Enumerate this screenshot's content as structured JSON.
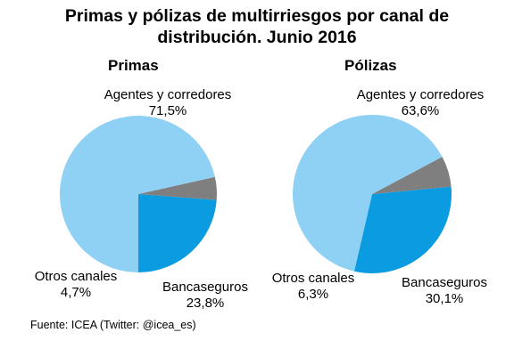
{
  "figure": {
    "title_line1": "Primas y pólizas de multirriesgos por canal de",
    "title_line2": "distribución. Junio 2016",
    "source": "Fuente: ICEA (Twitter: @icea_es)"
  },
  "colors": {
    "Agentes y corredores": "#8fd0f5",
    "Bancaseguros": "#0a9be0",
    "Otros canales": "#7f7f7f"
  },
  "chart_data": [
    {
      "type": "pie",
      "title": "Primas",
      "slices": [
        {
          "label": "Agentes y corredores",
          "value": 71.5,
          "value_label": "71,5%"
        },
        {
          "label": "Bancaseguros",
          "value": 23.8,
          "value_label": "23,8%"
        },
        {
          "label": "Otros canales",
          "value": 4.7,
          "value_label": "4,7%"
        }
      ]
    },
    {
      "type": "pie",
      "title": "Pólizas",
      "slices": [
        {
          "label": "Agentes y corredores",
          "value": 63.6,
          "value_label": "63,6%"
        },
        {
          "label": "Bancaseguros",
          "value": 30.1,
          "value_label": "30,1%"
        },
        {
          "label": "Otros canales",
          "value": 6.3,
          "value_label": "6,3%"
        }
      ]
    }
  ]
}
